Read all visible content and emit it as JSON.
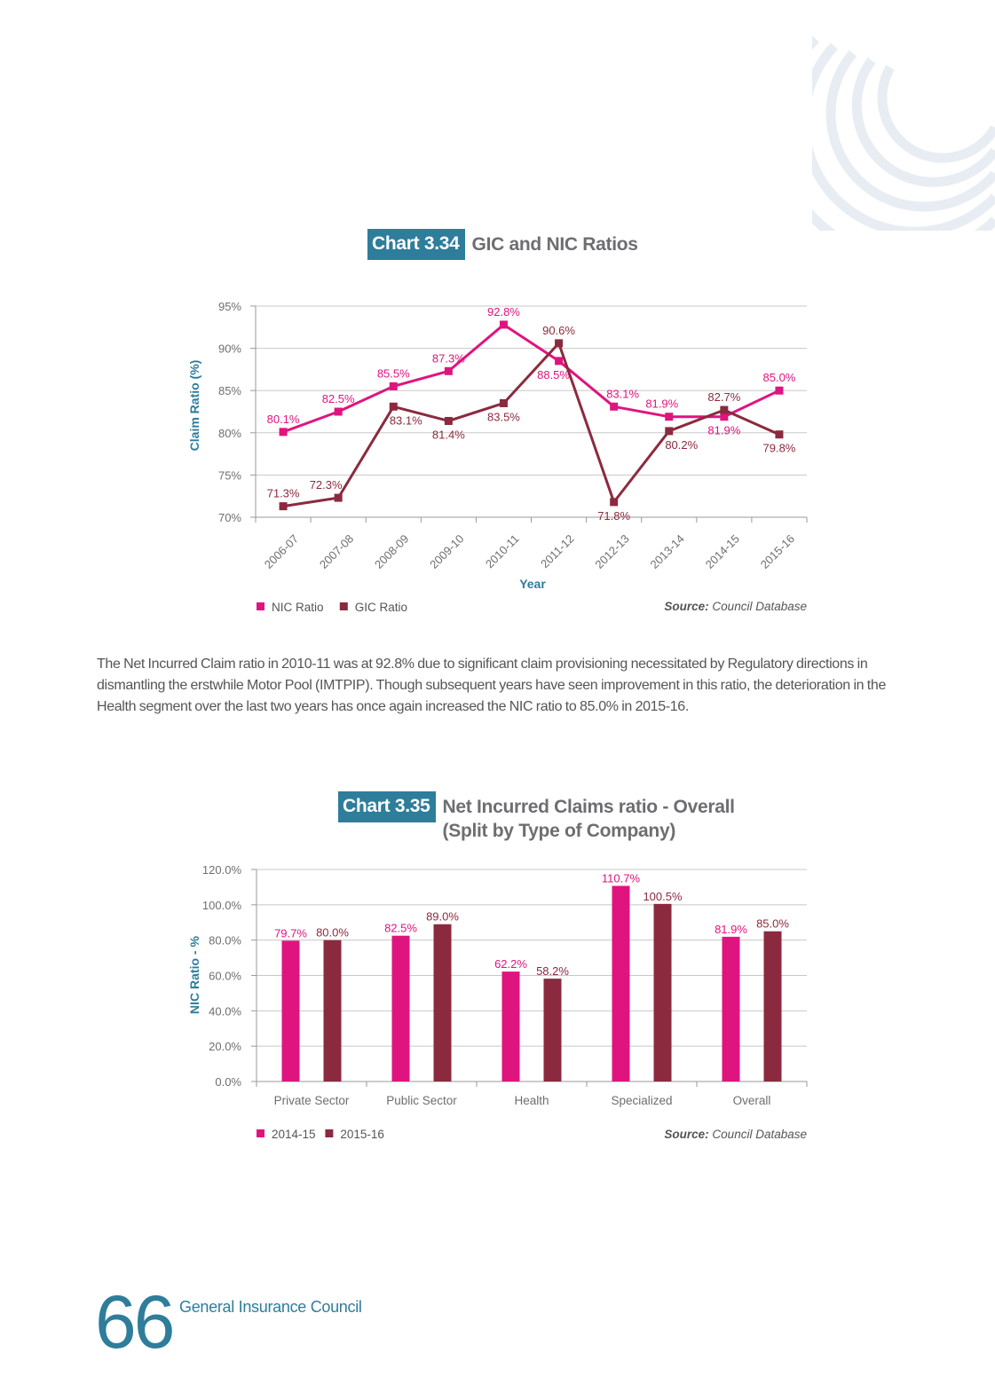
{
  "colors": {
    "accent": "#2e7d9b",
    "magenta": "#e0147f",
    "maroon": "#8b2a3e",
    "grid": "#c8c8c8",
    "deco": "#e8edf3"
  },
  "charts": {
    "c334": {
      "number": "Chart 3.34",
      "title_lines": [
        "GIC and NIC Ratios"
      ],
      "source_label": "Source:",
      "source_text": " Council Database"
    },
    "c335": {
      "number": "Chart 3.35",
      "title_lines": [
        "Net Incurred Claims ratio - Overall",
        "(Split by Type of Company)"
      ],
      "source_label": "Source:",
      "source_text": " Council Database"
    }
  },
  "chart_data": [
    {
      "type": "line",
      "title": "GIC and NIC Ratios",
      "xlabel": "Year",
      "ylabel": "Claim Ratio (%)",
      "categories": [
        "2006-07",
        "2007-08",
        "2008-09",
        "2009-10",
        "2010-11",
        "2011-12",
        "2012-13",
        "2013-14",
        "2014-15",
        "2015-16"
      ],
      "ylim": [
        70,
        95
      ],
      "yticks": [
        70,
        75,
        80,
        85,
        90,
        95
      ],
      "ytick_suffix": "%",
      "grid": true,
      "legend": "bottom-left",
      "series": [
        {
          "name": "NIC Ratio",
          "color": "#e0147f",
          "values": [
            80.1,
            82.5,
            85.5,
            87.3,
            92.8,
            88.5,
            83.1,
            81.9,
            81.9,
            85.0
          ],
          "labels": [
            "80.1%",
            "82.5%",
            "85.5%",
            "87.3%",
            "92.8%",
            "88.5%",
            "83.1%",
            "81.9%",
            "81.9%",
            "85.0%"
          ]
        },
        {
          "name": "GIC Ratio",
          "color": "#8b2a3e",
          "values": [
            71.3,
            72.3,
            83.1,
            81.4,
            83.5,
            90.6,
            71.8,
            80.2,
            82.7,
            79.8
          ],
          "labels": [
            "71.3%",
            "72.3%",
            "83.1%",
            "81.4%",
            "83.5%",
            "90.6%",
            "71.8%",
            "80.2%",
            "82.7%",
            "79.8%"
          ]
        }
      ]
    },
    {
      "type": "bar",
      "title": "Net Incurred Claims ratio - Overall (Split by Type of Company)",
      "xlabel": "",
      "ylabel": "NIC Ratio - %",
      "categories": [
        "Private Sector",
        "Public Sector",
        "Health",
        "Specialized",
        "Overall"
      ],
      "ylim": [
        0,
        120
      ],
      "yticks": [
        0,
        20,
        40,
        60,
        80,
        100,
        120
      ],
      "ytick_suffix": ".0%",
      "grid": true,
      "legend": "bottom-left",
      "series": [
        {
          "name": "2014-15",
          "color": "#e0147f",
          "values": [
            79.7,
            82.5,
            62.2,
            110.7,
            81.9
          ],
          "labels": [
            "79.7%",
            "82.5%",
            "62.2%",
            "110.7%",
            "81.9%"
          ]
        },
        {
          "name": "2015-16",
          "color": "#8b2a3e",
          "values": [
            80.0,
            89.0,
            58.2,
            100.5,
            85.0
          ],
          "labels": [
            "80.0%",
            "89.0%",
            "58.2%",
            "100.5%",
            "85.0%"
          ]
        }
      ]
    }
  ],
  "body_text": "The Net Incurred Claim ratio in 2010-11 was at 92.8% due to significant claim provisioning necessitated by Regulatory directions in dismantling the erstwhile Motor Pool (IMTPIP). Though subsequent years have seen improvement in this ratio, the deterioration in the Health segment over the last two years has once again increased the NIC ratio to 85.0% in 2015-16.",
  "footer": {
    "page_number": "66",
    "org_name": "General Insurance Council"
  }
}
